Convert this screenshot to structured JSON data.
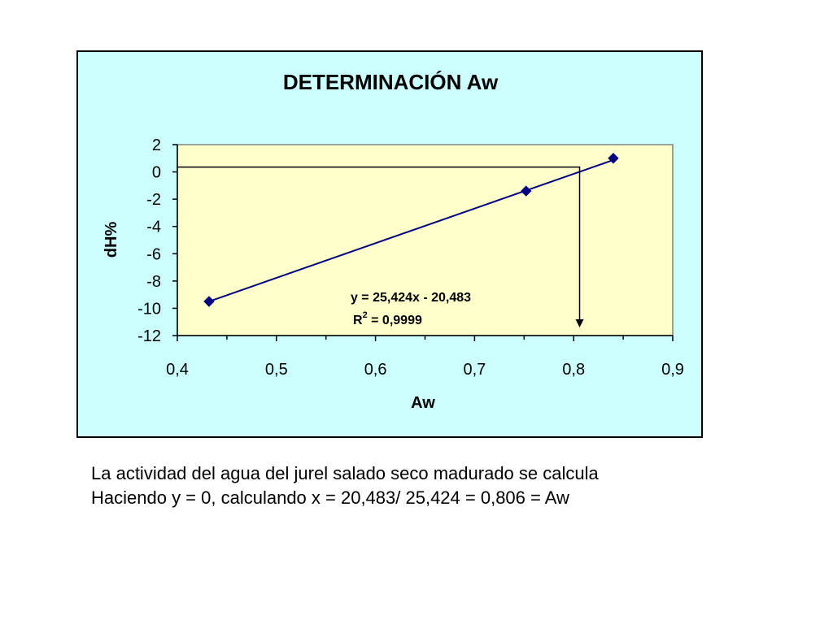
{
  "chart_data": {
    "type": "scatter",
    "title": "DETERMINACIÓN  Aw",
    "xlabel": "Aw",
    "ylabel": "dH%",
    "xlim": [
      0.4,
      0.9
    ],
    "ylim": [
      -12,
      2
    ],
    "xticks": [
      "0,4",
      "0,5",
      "0,6",
      "0,7",
      "0,8",
      "0,9"
    ],
    "xtick_values": [
      0.4,
      0.5,
      0.6,
      0.7,
      0.8,
      0.9
    ],
    "yticks": [
      "2",
      "0",
      "-2",
      "-4",
      "-6",
      "-8",
      "-10",
      "-12"
    ],
    "ytick_values": [
      2,
      0,
      -2,
      -4,
      -6,
      -8,
      -10,
      -12
    ],
    "grid": false,
    "legend": "none",
    "series": [
      {
        "x": [
          0.432,
          0.752,
          0.84
        ],
        "y": [
          -9.5,
          -1.4,
          1.0
        ]
      }
    ],
    "trendline": {
      "slope": 25.424,
      "intercept": -20.483,
      "x_range": [
        0.432,
        0.84
      ],
      "equation_label": "y = 25,424x - 20,483",
      "r2_prefix": "R",
      "r2_superscript": "2",
      "r2_suffix": " = 0,9999"
    },
    "annotation": {
      "y_level": 0,
      "x_value": 0.806
    },
    "colors": {
      "frame_background": "#ccffff",
      "plot_background": "#ffffcc",
      "series": "#000080",
      "axis": "#000000",
      "plot_border": "#808080"
    }
  },
  "caption": {
    "line1": "La actividad del agua del jurel salado seco madurado se calcula",
    "line2": "Haciendo y = 0, calculando x = 20,483/ 25,424 =  0,806 = Aw"
  }
}
